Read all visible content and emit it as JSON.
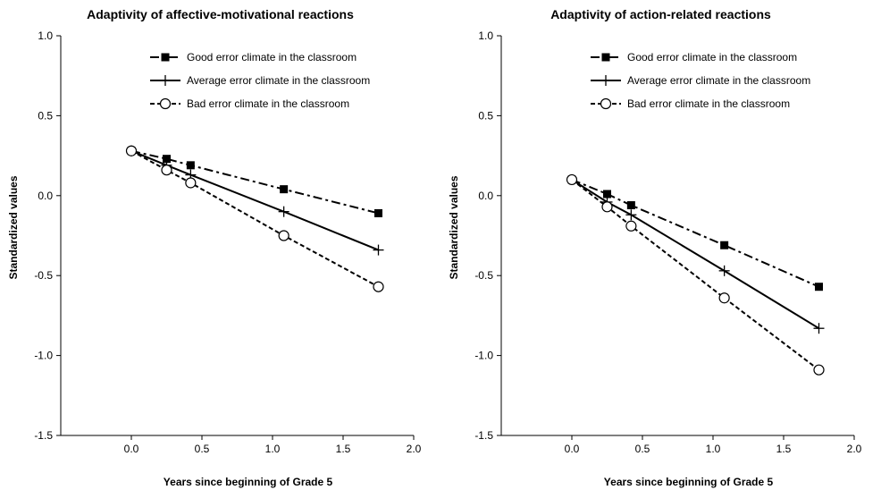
{
  "chart_data": [
    {
      "type": "line",
      "title": "Adaptivity of affective-motivational reactions",
      "xlabel": "Years since beginning of Grade 5",
      "ylabel": "Standardized values",
      "xlim": [
        -0.5,
        2.0
      ],
      "ylim": [
        -1.5,
        1.0
      ],
      "x_ticks": [
        "0.0",
        "0.5",
        "1.0",
        "1.5",
        "2.0"
      ],
      "y_ticks": [
        "1.0",
        "0.5",
        "0.0",
        "-0.5",
        "-1.0",
        "-1.5"
      ],
      "grid": false,
      "legend_position": "top-right",
      "series": [
        {
          "name": "Good error climate in the classroom",
          "marker": "filled-square",
          "line_style": "dash-dot",
          "x": [
            0.0,
            0.25,
            0.42,
            1.08,
            1.75
          ],
          "y": [
            0.28,
            0.23,
            0.19,
            0.04,
            -0.11
          ]
        },
        {
          "name": "Average error climate in the classroom",
          "marker": "plus",
          "line_style": "solid",
          "x": [
            0.0,
            0.25,
            0.42,
            1.08,
            1.75
          ],
          "y": [
            0.28,
            0.19,
            0.13,
            -0.1,
            -0.34
          ]
        },
        {
          "name": "Bad error climate in the classroom",
          "marker": "open-circle",
          "line_style": "dashed",
          "x": [
            0.0,
            0.25,
            0.42,
            1.08,
            1.75
          ],
          "y": [
            0.28,
            0.16,
            0.08,
            -0.25,
            -0.57
          ]
        }
      ]
    },
    {
      "type": "line",
      "title": "Adaptivity of action-related reactions",
      "xlabel": "Years since beginning of Grade 5",
      "ylabel": "Standardized values",
      "xlim": [
        -0.5,
        2.0
      ],
      "ylim": [
        -1.5,
        1.0
      ],
      "x_ticks": [
        "0.0",
        "0.5",
        "1.0",
        "1.5",
        "2.0"
      ],
      "y_ticks": [
        "1.0",
        "0.5",
        "0.0",
        "-0.5",
        "-1.0",
        "-1.5"
      ],
      "grid": false,
      "legend_position": "top-right",
      "series": [
        {
          "name": "Good error climate in the classroom",
          "marker": "filled-square",
          "line_style": "dash-dot",
          "x": [
            0.0,
            0.25,
            0.42,
            1.08,
            1.75
          ],
          "y": [
            0.1,
            0.01,
            -0.06,
            -0.31,
            -0.57
          ]
        },
        {
          "name": "Average error climate in the classroom",
          "marker": "plus",
          "line_style": "solid",
          "x": [
            0.0,
            0.25,
            0.42,
            1.08,
            1.75
          ],
          "y": [
            0.1,
            -0.04,
            -0.12,
            -0.47,
            -0.83
          ]
        },
        {
          "name": "Bad error climate in the classroom",
          "marker": "open-circle",
          "line_style": "dashed",
          "x": [
            0.0,
            0.25,
            0.42,
            1.08,
            1.75
          ],
          "y": [
            0.1,
            -0.07,
            -0.19,
            -0.64,
            -1.09
          ]
        }
      ]
    }
  ]
}
